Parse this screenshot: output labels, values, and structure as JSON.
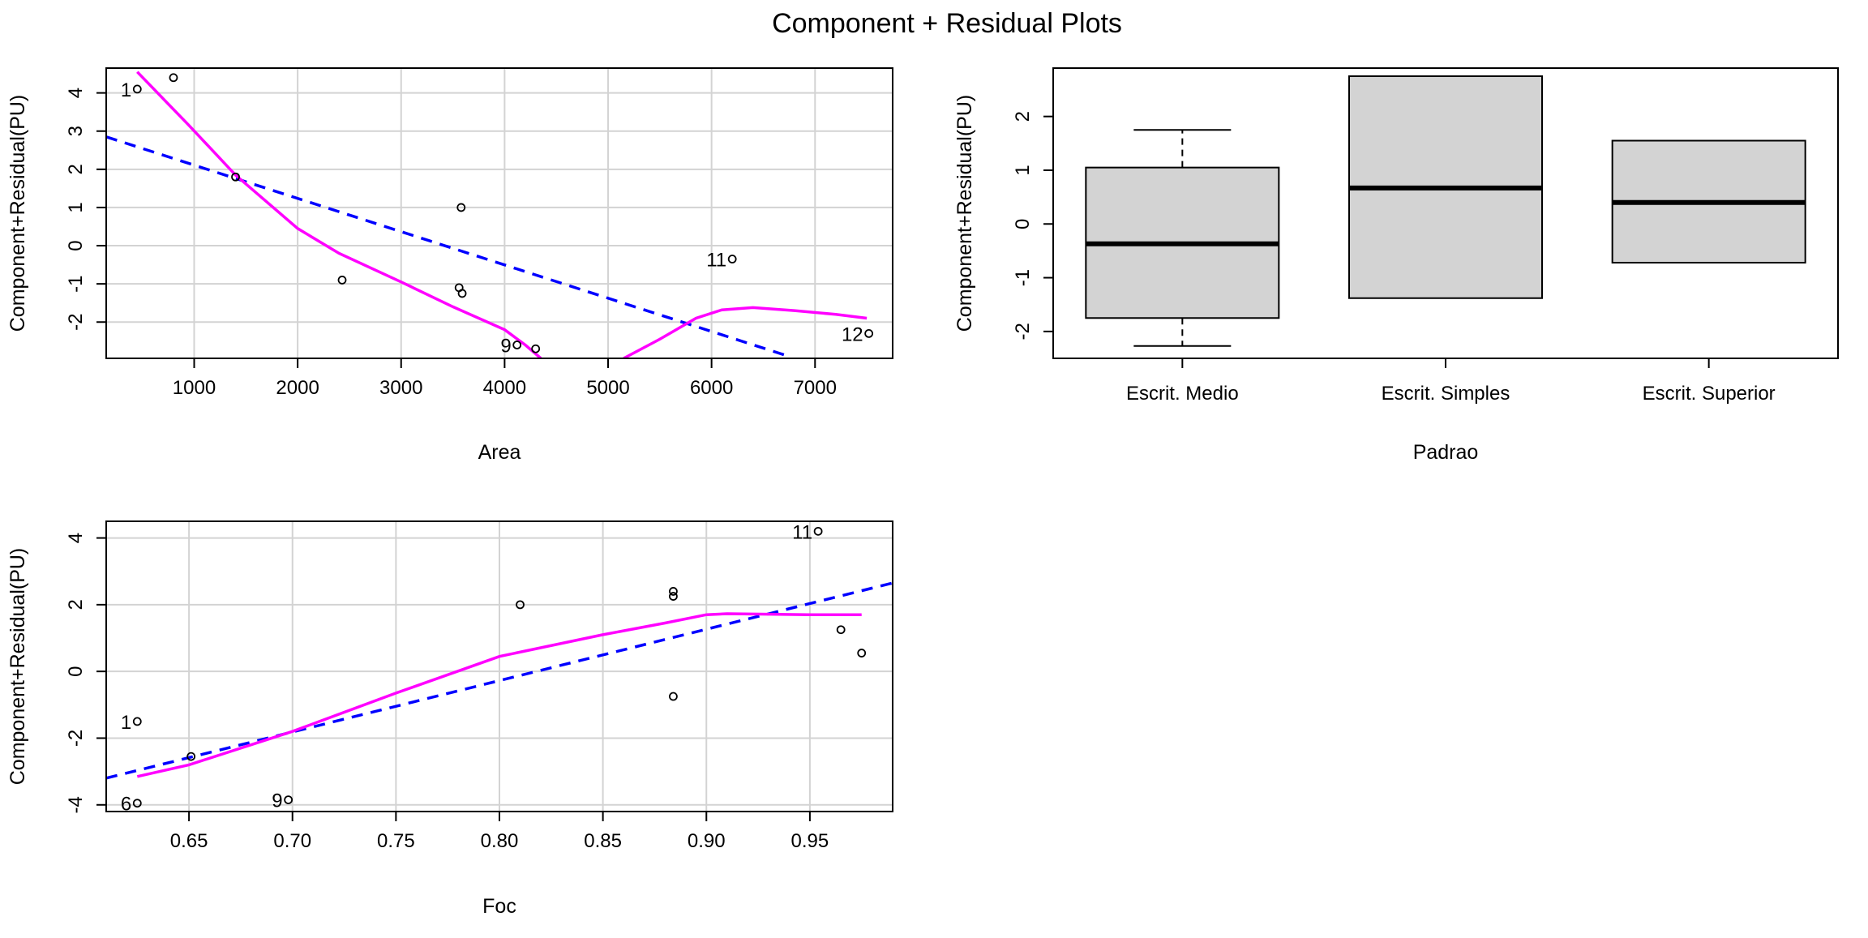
{
  "title": "Component + Residual Plots",
  "chart_data": [
    {
      "type": "scatter",
      "xlabel": "Area",
      "ylabel": "Component+Residual(PU)",
      "xlim": [
        150,
        7750
      ],
      "ylim": [
        -2.95,
        4.65
      ],
      "xticks": [
        1000,
        2000,
        3000,
        4000,
        5000,
        6000,
        7000
      ],
      "yticks": [
        -2,
        -1,
        0,
        1,
        2,
        3,
        4
      ],
      "grid": true,
      "points": [
        {
          "x": 450,
          "y": 4.1,
          "label": "1"
        },
        {
          "x": 800,
          "y": 4.4,
          "label": ""
        },
        {
          "x": 1400,
          "y": 1.8,
          "label": ""
        },
        {
          "x": 2430,
          "y": -0.9,
          "label": ""
        },
        {
          "x": 3580,
          "y": 1.0,
          "label": ""
        },
        {
          "x": 3560,
          "y": -1.1,
          "label": ""
        },
        {
          "x": 3590,
          "y": -1.25,
          "label": ""
        },
        {
          "x": 4120,
          "y": -2.6,
          "label": "9"
        },
        {
          "x": 4300,
          "y": -2.7,
          "label": ""
        },
        {
          "x": 6200,
          "y": -0.35,
          "label": "11"
        },
        {
          "x": 7520,
          "y": -2.3,
          "label": "12"
        }
      ],
      "fit_line": {
        "color": "#0000ff",
        "style": "dashed",
        "x": [
          150,
          6750
        ],
        "y": [
          2.85,
          -2.9
        ]
      },
      "smooth_line": {
        "color": "#ff00ff",
        "segments": [
          {
            "x": [
              450,
              950,
              1400,
              2000,
              2400,
              3000,
              3500,
              4000,
              4200,
              4350
            ],
            "y": [
              4.55,
              3.15,
              1.85,
              0.45,
              -0.2,
              -0.95,
              -1.6,
              -2.2,
              -2.6,
              -2.95
            ]
          },
          {
            "x": [
              5150,
              5500,
              5850,
              6100,
              6400,
              6800,
              7200,
              7500
            ],
            "y": [
              -2.95,
              -2.45,
              -1.9,
              -1.68,
              -1.62,
              -1.7,
              -1.8,
              -1.9
            ]
          }
        ]
      }
    },
    {
      "type": "boxplot",
      "xlabel": "Padrao",
      "ylabel": "Component+Residual(PU)",
      "categories": [
        "Escrit. Medio",
        "Escrit. Simples",
        "Escrit. Superior"
      ],
      "ylim": [
        -2.5,
        2.9
      ],
      "yticks": [
        -2,
        -1,
        0,
        1,
        2
      ],
      "boxes": [
        {
          "whisker_low": -2.27,
          "q1": -1.75,
          "median": -0.37,
          "q3": 1.05,
          "whisker_high": 1.75
        },
        {
          "whisker_low": -1.38,
          "q1": -1.38,
          "median": 0.67,
          "q3": 2.75,
          "whisker_high": 2.75
        },
        {
          "whisker_low": -0.72,
          "q1": -0.72,
          "median": 0.4,
          "q3": 1.55,
          "whisker_high": 1.55
        }
      ],
      "box_color": "#d3d3d3"
    },
    {
      "type": "scatter",
      "xlabel": "Foc",
      "ylabel": "Component+Residual(PU)",
      "xlim": [
        0.61,
        0.99
      ],
      "ylim": [
        -4.2,
        4.5
      ],
      "xticks": [
        0.65,
        0.7,
        0.75,
        0.8,
        0.85,
        0.9,
        0.95
      ],
      "xticklabels": [
        "0.65",
        "0.70",
        "0.75",
        "0.80",
        "0.85",
        "0.90",
        "0.95"
      ],
      "yticks": [
        -4,
        -2,
        0,
        2,
        4
      ],
      "grid": true,
      "points": [
        {
          "x": 0.625,
          "y": -1.5,
          "label": "1"
        },
        {
          "x": 0.625,
          "y": -3.95,
          "label": "6"
        },
        {
          "x": 0.651,
          "y": -2.55,
          "label": ""
        },
        {
          "x": 0.698,
          "y": -3.85,
          "label": "9"
        },
        {
          "x": 0.81,
          "y": 2.0,
          "label": ""
        },
        {
          "x": 0.884,
          "y": 2.4,
          "label": ""
        },
        {
          "x": 0.884,
          "y": 2.25,
          "label": ""
        },
        {
          "x": 0.884,
          "y": -0.75,
          "label": ""
        },
        {
          "x": 0.954,
          "y": 4.2,
          "label": "11"
        },
        {
          "x": 0.965,
          "y": 1.25,
          "label": ""
        },
        {
          "x": 0.975,
          "y": 0.55,
          "label": ""
        }
      ],
      "fit_line": {
        "color": "#0000ff",
        "style": "dashed",
        "x": [
          0.61,
          0.99
        ],
        "y": [
          -3.2,
          2.65
        ]
      },
      "smooth_line": {
        "color": "#ff00ff",
        "segments": [
          {
            "x": [
              0.625,
              0.65,
              0.7,
              0.75,
              0.8,
              0.85,
              0.88,
              0.9,
              0.91,
              0.95,
              0.975
            ],
            "y": [
              -3.15,
              -2.8,
              -1.8,
              -0.65,
              0.45,
              1.1,
              1.45,
              1.7,
              1.73,
              1.7,
              1.7
            ]
          }
        ]
      }
    }
  ]
}
